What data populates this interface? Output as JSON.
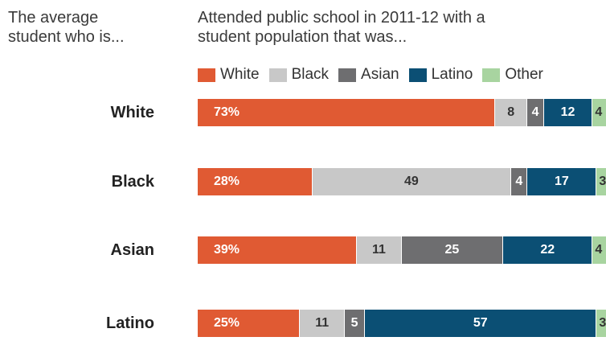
{
  "header": {
    "left_line1": "The average",
    "left_line2": "student who is...",
    "right_line1": "Attended public school in 2011-12 with a",
    "right_line2": "student population that was..."
  },
  "colors": {
    "White": "#e05a33",
    "Black": "#c8c8c8",
    "Asian": "#6e6e70",
    "Latino": "#0b4f74",
    "Other": "#a8d4a0"
  },
  "chart_data": {
    "type": "bar",
    "orientation": "horizontal",
    "stacked": true,
    "title": "",
    "xlabel": "",
    "ylabel": "",
    "xlim": [
      0,
      100
    ],
    "grid": false,
    "legend_position": "top",
    "categories": [
      "White",
      "Black",
      "Asian",
      "Latino"
    ],
    "series": [
      {
        "name": "White",
        "values": [
          73,
          28,
          39,
          25
        ],
        "labels": [
          "73%",
          "28%",
          "39%",
          "25%"
        ]
      },
      {
        "name": "Black",
        "values": [
          8,
          49,
          11,
          11
        ],
        "labels": [
          "8",
          "49",
          "11",
          "11"
        ]
      },
      {
        "name": "Asian",
        "values": [
          4,
          4,
          25,
          5
        ],
        "labels": [
          "4",
          "4",
          "25",
          "5"
        ]
      },
      {
        "name": "Latino",
        "values": [
          12,
          17,
          22,
          57
        ],
        "labels": [
          "12",
          "17",
          "22",
          "57"
        ]
      },
      {
        "name": "Other",
        "values": [
          4,
          3,
          4,
          3
        ],
        "labels": [
          "4",
          "3",
          "4",
          "3"
        ]
      }
    ]
  }
}
